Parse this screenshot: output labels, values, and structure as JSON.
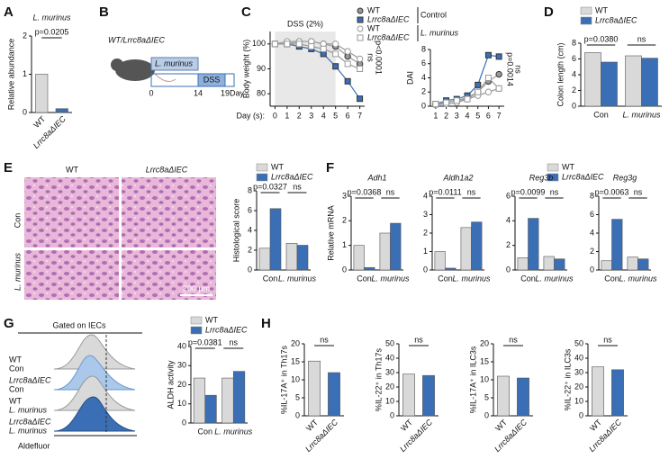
{
  "panels": [
    "A",
    "B",
    "C",
    "D",
    "E",
    "F",
    "G",
    "H"
  ],
  "schematic": {
    "label": "WT/Lrrc8aΔIEC",
    "bar1": "L. murinus",
    "bar2": "DSS",
    "days": [
      "0",
      "14",
      "19"
    ],
    "unit": "Day"
  },
  "histology": {
    "cols": [
      "WT",
      "Lrrc8aΔIEC"
    ],
    "rows": [
      "Con",
      "L. murinus"
    ],
    "scale": "200 µm"
  },
  "flow": {
    "title": "Gated on IECs",
    "rows": [
      [
        "WT",
        "Con"
      ],
      [
        "Lrrc8aΔIEC",
        "Con"
      ],
      [
        "WT",
        "L. murinus"
      ],
      [
        "Lrrc8aΔIEC",
        "L. murinus"
      ]
    ],
    "xlabel": "Aldefluor"
  },
  "chart_data": [
    {
      "type": "bar",
      "title": "L. murinus",
      "ylabel": "Relative abundance",
      "categories": [
        "WT",
        "Lrrc8aΔIEC"
      ],
      "values": [
        1.0,
        0.1
      ],
      "colors": [
        "#d9d9d9",
        "#3a6fb5"
      ],
      "ylim": [
        0,
        2
      ],
      "yticks": [
        0,
        1,
        2
      ],
      "annotations": [
        "p=0.0205"
      ]
    },
    {
      "type": "line",
      "ylabel": "Body weight (%)",
      "xlabel": "Day (s):",
      "x": [
        0,
        1,
        2,
        3,
        4,
        5,
        6,
        7
      ],
      "xlim": [
        -0.4,
        7.4
      ],
      "xticks": [
        0,
        1,
        2,
        3,
        4,
        5,
        6,
        7
      ],
      "ylim": [
        75,
        105
      ],
      "yticks": [
        80,
        90,
        100
      ],
      "shade": {
        "label": "DSS (2%)",
        "x": [
          0,
          5
        ]
      },
      "series": [
        {
          "color": "#999999",
          "marker": "circle",
          "filled": true,
          "values": [
            100,
            100,
            101,
            101,
            100,
            99,
            95,
            92
          ]
        },
        {
          "color": "#3a6fb5",
          "marker": "square",
          "filled": true,
          "values": [
            100,
            100,
            99,
            98,
            96,
            91,
            85,
            78
          ]
        },
        {
          "color": "#999999",
          "marker": "circle",
          "filled": false,
          "values": [
            100,
            101,
            101,
            101,
            100,
            100,
            97,
            94
          ]
        },
        {
          "color": "#999999",
          "marker": "square",
          "filled": false,
          "values": [
            100,
            100,
            100,
            99,
            98,
            96,
            92,
            90
          ]
        }
      ],
      "annotations": [
        "ns",
        "p<0.0001"
      ]
    },
    {
      "type": "line",
      "ylabel": "DAI",
      "x": [
        1,
        2,
        3,
        4,
        5,
        6,
        7
      ],
      "xlim": [
        0.5,
        7.5
      ],
      "xticks": [
        1,
        2,
        3,
        4,
        5,
        6,
        7
      ],
      "ylim": [
        0,
        8
      ],
      "yticks": [
        0,
        2,
        4,
        6,
        8
      ],
      "legend_groups": [
        "Control",
        "L. murinus"
      ],
      "series": [
        {
          "name": "WT",
          "color": "#999999",
          "marker": "circle",
          "filled": true,
          "values": [
            0.3,
            0.5,
            0.8,
            1.2,
            2,
            3.5,
            4.5
          ]
        },
        {
          "name": "Lrrc8aΔIEC",
          "color": "#3a6fb5",
          "marker": "square",
          "filled": true,
          "values": [
            0.3,
            0.8,
            1,
            1.5,
            3,
            7.2,
            7
          ]
        },
        {
          "name": "WT",
          "color": "#999999",
          "marker": "circle",
          "filled": false,
          "values": [
            0.2,
            0.3,
            0.5,
            1,
            1.5,
            2,
            2.5
          ]
        },
        {
          "name": "Lrrc8aΔIEC",
          "color": "#999999",
          "marker": "square",
          "filled": false,
          "values": [
            0.3,
            0.5,
            0.8,
            1,
            2,
            4,
            2.5
          ]
        }
      ],
      "annotations": [
        "p=0.0014",
        "ns"
      ]
    },
    {
      "type": "bar",
      "ylabel": "Colon length (cm)",
      "categories": [
        "Con",
        "L. murinus"
      ],
      "ylim": [
        0,
        8
      ],
      "yticks": [
        0,
        2,
        4,
        6,
        8
      ],
      "legend": true,
      "series": [
        {
          "name": "WT",
          "color": "#d9d9d9",
          "values": [
            6.8,
            6.4
          ]
        },
        {
          "name": "Lrrc8aΔIEC",
          "color": "#3a6fb5",
          "values": [
            5.6,
            6.1
          ]
        }
      ],
      "annotations": [
        "p=0.0380",
        "ns"
      ]
    },
    {
      "type": "bar",
      "ylabel": "Histological score",
      "categories": [
        "Con",
        "L. murinus"
      ],
      "ylim": [
        0,
        8
      ],
      "yticks": [
        0,
        2,
        4,
        6,
        8
      ],
      "legend": true,
      "series": [
        {
          "name": "WT",
          "color": "#d9d9d9",
          "values": [
            2.2,
            2.7
          ]
        },
        {
          "name": "Lrrc8aΔIEC",
          "color": "#3a6fb5",
          "values": [
            6.2,
            2.5
          ]
        }
      ],
      "annotations": [
        "p=0.0327",
        "ns"
      ]
    },
    {
      "type": "bar",
      "title": "Adh1",
      "ylabel": "Relative mRNA",
      "categories": [
        "Con",
        "L. murinus"
      ],
      "ylim": [
        0,
        3
      ],
      "yticks": [
        0,
        1,
        2,
        3
      ],
      "legend": true,
      "series": [
        {
          "name": "WT",
          "color": "#d9d9d9",
          "values": [
            1.0,
            1.5
          ]
        },
        {
          "name": "Lrrc8aΔIEC",
          "color": "#3a6fb5",
          "values": [
            0.1,
            1.9
          ]
        }
      ],
      "annotations": [
        "p=0.0368",
        "ns"
      ]
    },
    {
      "type": "bar",
      "title": "Aldh1a2",
      "categories": [
        "Con",
        "L. murinus"
      ],
      "ylim": [
        0,
        4
      ],
      "yticks": [
        0,
        1,
        2,
        3,
        4
      ],
      "series": [
        {
          "color": "#d9d9d9",
          "values": [
            1.0,
            2.3
          ]
        },
        {
          "color": "#3a6fb5",
          "values": [
            0.1,
            2.6
          ]
        }
      ],
      "annotations": [
        "p=0.0111",
        "ns"
      ]
    },
    {
      "type": "bar",
      "title": "Reg3b",
      "categories": [
        "Con",
        "L. murinus"
      ],
      "ylim": [
        0,
        6
      ],
      "yticks": [
        0,
        2,
        4,
        6
      ],
      "series": [
        {
          "color": "#d9d9d9",
          "values": [
            1.0,
            1.1
          ]
        },
        {
          "color": "#3a6fb5",
          "values": [
            4.2,
            0.9
          ]
        }
      ],
      "annotations": [
        "p=0.0099",
        "ns"
      ]
    },
    {
      "type": "bar",
      "title": "Reg3g",
      "categories": [
        "Con",
        "L. murinus"
      ],
      "ylim": [
        0,
        8
      ],
      "yticks": [
        0,
        2,
        4,
        6,
        8
      ],
      "series": [
        {
          "color": "#d9d9d9",
          "values": [
            1.0,
            1.4
          ]
        },
        {
          "color": "#3a6fb5",
          "values": [
            5.5,
            1.2
          ]
        }
      ],
      "annotations": [
        "p=0.0063",
        "ns"
      ]
    },
    {
      "type": "bar",
      "ylabel": "ALDH activity",
      "categories": [
        "Con",
        "L. murinus"
      ],
      "ylim": [
        0,
        40
      ],
      "yticks": [
        0,
        10,
        20,
        30,
        40
      ],
      "legend": true,
      "series": [
        {
          "name": "WT",
          "color": "#d9d9d9",
          "values": [
            23.5,
            23.5
          ]
        },
        {
          "name": "Lrrc8aΔIEC",
          "color": "#3a6fb5",
          "values": [
            14.5,
            27
          ]
        }
      ],
      "annotations": [
        "p=0.0381",
        "ns"
      ]
    },
    {
      "type": "bar",
      "ylabel": "%IL-17A⁺ in Th17s",
      "categories": [
        "WT",
        "Lrrc8aΔIEC"
      ],
      "values": [
        15.2,
        12
      ],
      "colors": [
        "#d9d9d9",
        "#3a6fb5"
      ],
      "ylim": [
        0,
        20
      ],
      "yticks": [
        0,
        5,
        10,
        15,
        20
      ],
      "annotations": [
        "ns"
      ]
    },
    {
      "type": "bar",
      "ylabel": "%IL-22⁺ in Th17s",
      "categories": [
        "WT",
        "Lrrc8aΔIEC"
      ],
      "values": [
        29,
        28
      ],
      "colors": [
        "#d9d9d9",
        "#3a6fb5"
      ],
      "ylim": [
        0,
        50
      ],
      "yticks": [
        0,
        10,
        20,
        30,
        40,
        50
      ],
      "annotations": [
        "ns"
      ]
    },
    {
      "type": "bar",
      "ylabel": "%IL-17A⁺ in ILC3s",
      "categories": [
        "WT",
        "Lrrc8aΔIEC"
      ],
      "values": [
        11,
        10.5
      ],
      "colors": [
        "#d9d9d9",
        "#3a6fb5"
      ],
      "ylim": [
        0,
        20
      ],
      "yticks": [
        0,
        5,
        10,
        15,
        20
      ],
      "annotations": [
        "ns"
      ]
    },
    {
      "type": "bar",
      "ylabel": "%IL-22⁺ in ILC3s",
      "categories": [
        "WT",
        "Lrrc8aΔIEC"
      ],
      "values": [
        34,
        32
      ],
      "colors": [
        "#d9d9d9",
        "#3a6fb5"
      ],
      "ylim": [
        0,
        50
      ],
      "yticks": [
        0,
        10,
        20,
        30,
        40,
        50
      ],
      "annotations": [
        "ns"
      ]
    }
  ]
}
